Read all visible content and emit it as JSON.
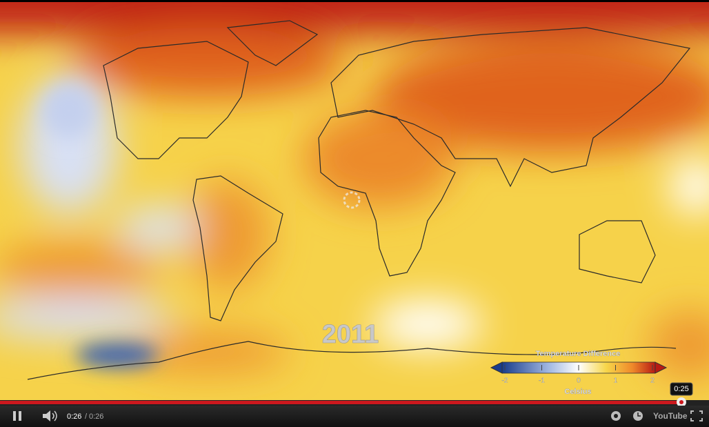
{
  "video": {
    "year_label": "2011"
  },
  "legend": {
    "title": "Temperature Difference",
    "ticks": [
      -2,
      -1,
      0,
      1,
      2
    ],
    "unit": "Celsius"
  },
  "player": {
    "current_time": "0:26",
    "separator": "/",
    "duration": "0:26",
    "tooltip_time": "0:25",
    "logo": "YouTube"
  }
}
